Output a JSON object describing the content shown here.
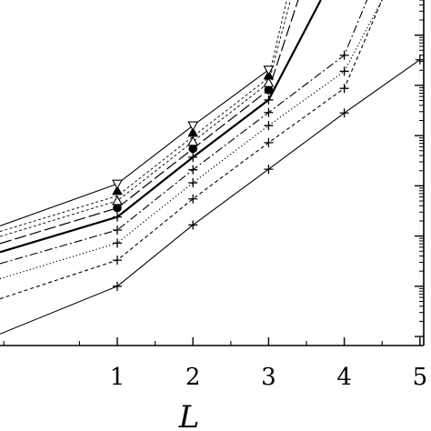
{
  "chart_data": {
    "type": "line",
    "title": "",
    "xlabel": "L",
    "ylabel": "",
    "xlim": [
      -0.55,
      5.05
    ],
    "ylim": [
      -1.18,
      5.7
    ],
    "grid": false,
    "legend": "none",
    "x_ticks": [
      "1",
      "2",
      "3",
      "4",
      "5"
    ],
    "series": [
      {
        "style": "solid-thin",
        "marker": "plus",
        "x": [
          -0.55,
          1,
          2,
          3,
          4,
          5
        ],
        "y": [
          -0.95,
          0.0,
          1.22,
          2.33,
          3.45,
          4.51
        ]
      },
      {
        "style": "dashed",
        "marker": "plus",
        "x": [
          -0.55,
          1,
          2,
          3,
          4,
          4.5
        ],
        "y": [
          -0.25,
          0.52,
          1.74,
          2.86,
          3.94,
          5.7
        ]
      },
      {
        "style": "dotted",
        "marker": "plus",
        "x": [
          -0.55,
          1,
          2,
          3,
          4,
          4.5
        ],
        "y": [
          0.15,
          0.86,
          2.06,
          3.2,
          4.28,
          5.7
        ]
      },
      {
        "style": "dash-dot",
        "marker": "plus",
        "x": [
          -0.55,
          1,
          2,
          3,
          4,
          4.3
        ],
        "y": [
          0.45,
          1.12,
          2.32,
          3.46,
          4.6,
          5.7
        ]
      },
      {
        "style": "solid-thick",
        "marker": "plus",
        "x": [
          -0.55,
          1,
          2,
          3,
          3.69
        ],
        "y": [
          0.68,
          1.38,
          2.57,
          3.71,
          5.7
        ]
      },
      {
        "style": "long-dash",
        "marker": "none",
        "x": [
          -0.55,
          1,
          2,
          3,
          3.39
        ],
        "y": [
          0.85,
          1.56,
          2.74,
          3.91,
          5.7
        ]
      },
      {
        "style": "fine-dash",
        "marker": "none",
        "x": [
          -0.55,
          1,
          2,
          3,
          3.29
        ],
        "y": [
          0.99,
          1.7,
          2.88,
          4.05,
          5.7
        ]
      },
      {
        "style": "fine-dash",
        "marker": "none",
        "x": [
          -0.55,
          1,
          2,
          3,
          3.24
        ],
        "y": [
          1.09,
          1.8,
          2.98,
          4.15,
          5.7
        ]
      },
      {
        "style": "solid-thin",
        "marker": "none",
        "x": [
          -0.55,
          1,
          2,
          3
        ],
        "y": [
          1.2,
          2.04,
          3.2,
          4.31
        ]
      }
    ],
    "markers": [
      {
        "symbol": "filled-circle",
        "x": [
          1,
          2,
          3
        ],
        "y": [
          1.56,
          2.74,
          3.91
        ]
      },
      {
        "symbol": "open-triangle",
        "x": [
          1,
          2,
          3
        ],
        "y": [
          1.7,
          2.88,
          4.05
        ]
      },
      {
        "symbol": "filled-triangle",
        "x": [
          1,
          2,
          3
        ],
        "y": [
          1.9,
          3.06,
          4.2
        ]
      },
      {
        "symbol": "open-triangle-down",
        "x": [
          1,
          2,
          3
        ],
        "y": [
          2.04,
          3.2,
          4.31
        ]
      }
    ]
  }
}
